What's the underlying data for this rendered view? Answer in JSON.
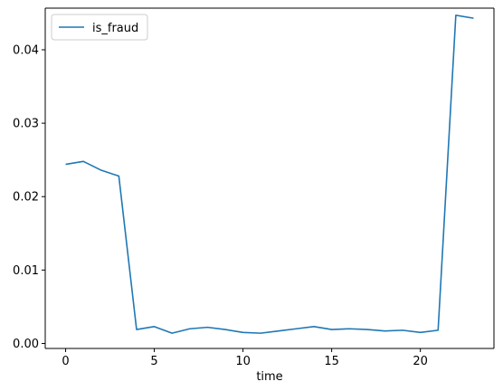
{
  "chart_data": {
    "type": "line",
    "title": "",
    "xlabel": "time",
    "ylabel": "",
    "xlim": [
      -1.15,
      24.15
    ],
    "ylim": [
      -0.00068,
      0.04567
    ],
    "xticks": [
      0,
      5,
      10,
      15,
      20
    ],
    "xtick_labels": [
      "0",
      "5",
      "10",
      "15",
      "20"
    ],
    "yticks": [
      0.0,
      0.01,
      0.02,
      0.03,
      0.04
    ],
    "ytick_labels": [
      "0.00",
      "0.01",
      "0.02",
      "0.03",
      "0.04"
    ],
    "grid": false,
    "legend_position": "top-left",
    "colors": {
      "series": "#1f77b4"
    },
    "series": [
      {
        "name": "is_fraud",
        "x": [
          0,
          1,
          2,
          3,
          4,
          5,
          6,
          7,
          8,
          9,
          10,
          11,
          12,
          13,
          14,
          15,
          16,
          17,
          18,
          19,
          20,
          21,
          22,
          23
        ],
        "values": [
          0.0244,
          0.0248,
          0.0236,
          0.0228,
          0.0019,
          0.0023,
          0.0014,
          0.002,
          0.0022,
          0.0019,
          0.0015,
          0.0014,
          0.0017,
          0.002,
          0.0023,
          0.0019,
          0.002,
          0.0019,
          0.0017,
          0.0018,
          0.0015,
          0.0018,
          0.0447,
          0.0443
        ]
      }
    ]
  }
}
